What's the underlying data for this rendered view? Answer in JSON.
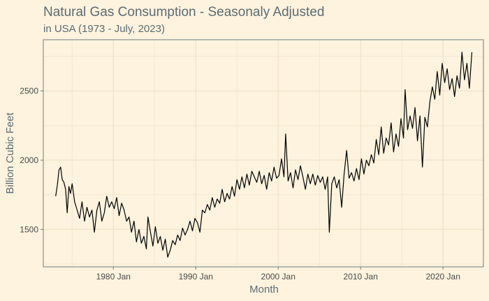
{
  "chart_data": {
    "type": "line",
    "title": "Natural Gas Consumption - Seasonaly Adjusted",
    "subtitle": "in USA (1973 - July, 2023)",
    "xlabel": "Month",
    "ylabel": "Billion Cubic Feet",
    "x_ticks": [
      "1980 Jan",
      "1990 Jan",
      "2000 Jan",
      "2010 Jan",
      "2020 Jan"
    ],
    "y_ticks": [
      1500,
      2000,
      2500
    ],
    "xlim": [
      1971.5,
      2024.9
    ],
    "ylim": [
      1230,
      2870
    ],
    "grid": true,
    "legend": "none",
    "series": [
      {
        "values": [
          [
            1973.0,
            1740
          ],
          [
            1973.2,
            1820
          ],
          [
            1973.4,
            1930
          ],
          [
            1973.6,
            1950
          ],
          [
            1973.8,
            1860
          ],
          [
            1974.0,
            1840
          ],
          [
            1974.2,
            1790
          ],
          [
            1974.4,
            1620
          ],
          [
            1974.6,
            1810
          ],
          [
            1974.8,
            1760
          ],
          [
            1975.0,
            1830
          ],
          [
            1975.3,
            1700
          ],
          [
            1975.6,
            1640
          ],
          [
            1975.9,
            1580
          ],
          [
            1976.2,
            1700
          ],
          [
            1976.5,
            1560
          ],
          [
            1976.8,
            1660
          ],
          [
            1977.1,
            1590
          ],
          [
            1977.4,
            1640
          ],
          [
            1977.7,
            1480
          ],
          [
            1978.0,
            1640
          ],
          [
            1978.3,
            1700
          ],
          [
            1978.6,
            1560
          ],
          [
            1978.9,
            1620
          ],
          [
            1979.2,
            1740
          ],
          [
            1979.5,
            1660
          ],
          [
            1979.8,
            1700
          ],
          [
            1980.1,
            1650
          ],
          [
            1980.4,
            1730
          ],
          [
            1980.7,
            1600
          ],
          [
            1981.0,
            1690
          ],
          [
            1981.3,
            1640
          ],
          [
            1981.6,
            1560
          ],
          [
            1981.9,
            1590
          ],
          [
            1982.2,
            1480
          ],
          [
            1982.5,
            1560
          ],
          [
            1982.8,
            1410
          ],
          [
            1983.1,
            1500
          ],
          [
            1983.4,
            1400
          ],
          [
            1983.7,
            1450
          ],
          [
            1984.0,
            1360
          ],
          [
            1984.2,
            1590
          ],
          [
            1984.5,
            1480
          ],
          [
            1984.8,
            1380
          ],
          [
            1985.1,
            1520
          ],
          [
            1985.4,
            1400
          ],
          [
            1985.7,
            1450
          ],
          [
            1986.0,
            1350
          ],
          [
            1986.3,
            1430
          ],
          [
            1986.6,
            1300
          ],
          [
            1986.9,
            1350
          ],
          [
            1987.2,
            1420
          ],
          [
            1987.5,
            1390
          ],
          [
            1987.8,
            1460
          ],
          [
            1988.1,
            1420
          ],
          [
            1988.4,
            1510
          ],
          [
            1988.7,
            1460
          ],
          [
            1989.0,
            1500
          ],
          [
            1989.3,
            1560
          ],
          [
            1989.6,
            1490
          ],
          [
            1989.9,
            1580
          ],
          [
            1990.2,
            1550
          ],
          [
            1990.5,
            1480
          ],
          [
            1990.8,
            1640
          ],
          [
            1991.1,
            1620
          ],
          [
            1991.4,
            1680
          ],
          [
            1991.7,
            1640
          ],
          [
            1992.0,
            1730
          ],
          [
            1992.3,
            1660
          ],
          [
            1992.6,
            1720
          ],
          [
            1992.9,
            1690
          ],
          [
            1993.2,
            1790
          ],
          [
            1993.5,
            1700
          ],
          [
            1993.8,
            1760
          ],
          [
            1994.1,
            1720
          ],
          [
            1994.4,
            1810
          ],
          [
            1994.7,
            1740
          ],
          [
            1995.0,
            1860
          ],
          [
            1995.3,
            1790
          ],
          [
            1995.6,
            1880
          ],
          [
            1995.9,
            1800
          ],
          [
            1996.2,
            1900
          ],
          [
            1996.5,
            1820
          ],
          [
            1996.8,
            1920
          ],
          [
            1997.1,
            1880
          ],
          [
            1997.4,
            1840
          ],
          [
            1997.7,
            1920
          ],
          [
            1998.0,
            1830
          ],
          [
            1998.3,
            1890
          ],
          [
            1998.6,
            1790
          ],
          [
            1998.9,
            1910
          ],
          [
            1999.2,
            1850
          ],
          [
            1999.5,
            1950
          ],
          [
            1999.8,
            1870
          ],
          [
            2000.1,
            1890
          ],
          [
            2000.4,
            2010
          ],
          [
            2000.7,
            1880
          ],
          [
            2000.9,
            2190
          ],
          [
            2001.2,
            1850
          ],
          [
            2001.5,
            1910
          ],
          [
            2001.8,
            1800
          ],
          [
            2002.1,
            1930
          ],
          [
            2002.4,
            1860
          ],
          [
            2002.7,
            1960
          ],
          [
            2003.0,
            1880
          ],
          [
            2003.3,
            1790
          ],
          [
            2003.6,
            1900
          ],
          [
            2003.9,
            1830
          ],
          [
            2004.2,
            1900
          ],
          [
            2004.5,
            1820
          ],
          [
            2004.8,
            1890
          ],
          [
            2005.1,
            1840
          ],
          [
            2005.4,
            1880
          ],
          [
            2005.7,
            1790
          ],
          [
            2006.0,
            1880
          ],
          [
            2006.2,
            1480
          ],
          [
            2006.5,
            1830
          ],
          [
            2006.8,
            1880
          ],
          [
            2007.1,
            1800
          ],
          [
            2007.4,
            1860
          ],
          [
            2007.7,
            1660
          ],
          [
            2008.0,
            1900
          ],
          [
            2008.3,
            2070
          ],
          [
            2008.6,
            1870
          ],
          [
            2008.9,
            1910
          ],
          [
            2009.2,
            1850
          ],
          [
            2009.5,
            1940
          ],
          [
            2009.8,
            1860
          ],
          [
            2010.1,
            2010
          ],
          [
            2010.4,
            1900
          ],
          [
            2010.7,
            2000
          ],
          [
            2011.0,
            1960
          ],
          [
            2011.3,
            2040
          ],
          [
            2011.6,
            1980
          ],
          [
            2011.9,
            2150
          ],
          [
            2012.2,
            2040
          ],
          [
            2012.5,
            2240
          ],
          [
            2012.8,
            2050
          ],
          [
            2013.1,
            2160
          ],
          [
            2013.4,
            2110
          ],
          [
            2013.7,
            2270
          ],
          [
            2014.0,
            2060
          ],
          [
            2014.3,
            2190
          ],
          [
            2014.6,
            2100
          ],
          [
            2014.9,
            2300
          ],
          [
            2015.2,
            2160
          ],
          [
            2015.4,
            2510
          ],
          [
            2015.7,
            2220
          ],
          [
            2016.0,
            2320
          ],
          [
            2016.3,
            2230
          ],
          [
            2016.6,
            2380
          ],
          [
            2016.9,
            2140
          ],
          [
            2017.2,
            2320
          ],
          [
            2017.5,
            1950
          ],
          [
            2017.8,
            2310
          ],
          [
            2018.1,
            2240
          ],
          [
            2018.4,
            2420
          ],
          [
            2018.7,
            2530
          ],
          [
            2019.0,
            2440
          ],
          [
            2019.3,
            2640
          ],
          [
            2019.6,
            2470
          ],
          [
            2019.9,
            2700
          ],
          [
            2020.2,
            2560
          ],
          [
            2020.5,
            2660
          ],
          [
            2020.8,
            2510
          ],
          [
            2021.1,
            2590
          ],
          [
            2021.4,
            2460
          ],
          [
            2021.7,
            2610
          ],
          [
            2022.0,
            2520
          ],
          [
            2022.3,
            2780
          ],
          [
            2022.6,
            2580
          ],
          [
            2022.9,
            2700
          ],
          [
            2023.2,
            2520
          ],
          [
            2023.5,
            2780
          ]
        ]
      }
    ]
  }
}
